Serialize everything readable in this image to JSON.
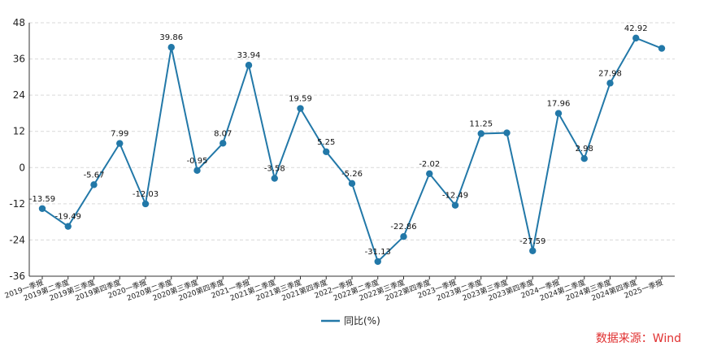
{
  "chart_data": {
    "type": "line",
    "categories": [
      "2019一季报",
      "2019第二季度",
      "2019第三季度",
      "2019第四季度",
      "2020一季报",
      "2020第二季度",
      "2020第三季度",
      "2020第四季度",
      "2021一季报",
      "2021第二季度",
      "2021第三季度",
      "2021第四季度",
      "2022一季报",
      "2022第二季度",
      "2022第三季度",
      "2022第四季度",
      "2023一季报",
      "2023第二季度",
      "2023第三季度",
      "2023第四季度",
      "2024一季报",
      "2024第二季度",
      "2024第三季度",
      "2024第四季度",
      "2025一季报"
    ],
    "series": [
      {
        "name": "同比(%)",
        "values": [
          -13.59,
          -19.49,
          -5.67,
          7.99,
          -12.03,
          39.86,
          -0.95,
          8.07,
          33.94,
          -3.58,
          19.59,
          5.25,
          -5.26,
          -31.13,
          -22.86,
          -2.02,
          -12.49,
          11.25,
          11.5,
          -27.59,
          17.96,
          2.98,
          27.98,
          42.92,
          39.5
        ],
        "labels": [
          "-13.59",
          "-19.49",
          "-5.67",
          "7.99",
          "-12.03",
          "39.86",
          "-0.95",
          "8.07",
          "33.94",
          "-3.58",
          "19.59",
          "5.25",
          "-5.26",
          "-31.13",
          "-22.86",
          "-2.02",
          "-12.49",
          "11.25",
          "",
          "-27.59",
          "17.96",
          "2.98",
          "27.98",
          "42.92",
          ""
        ]
      }
    ],
    "yticks": [
      "48",
      "36",
      "24",
      "12",
      "0",
      "-12",
      "-24",
      "-36"
    ],
    "ylim": [
      -36,
      48
    ],
    "grid": true,
    "legend_position": "bottom-center",
    "color": "#2278a8"
  },
  "source_note": "数据来源：Wind"
}
